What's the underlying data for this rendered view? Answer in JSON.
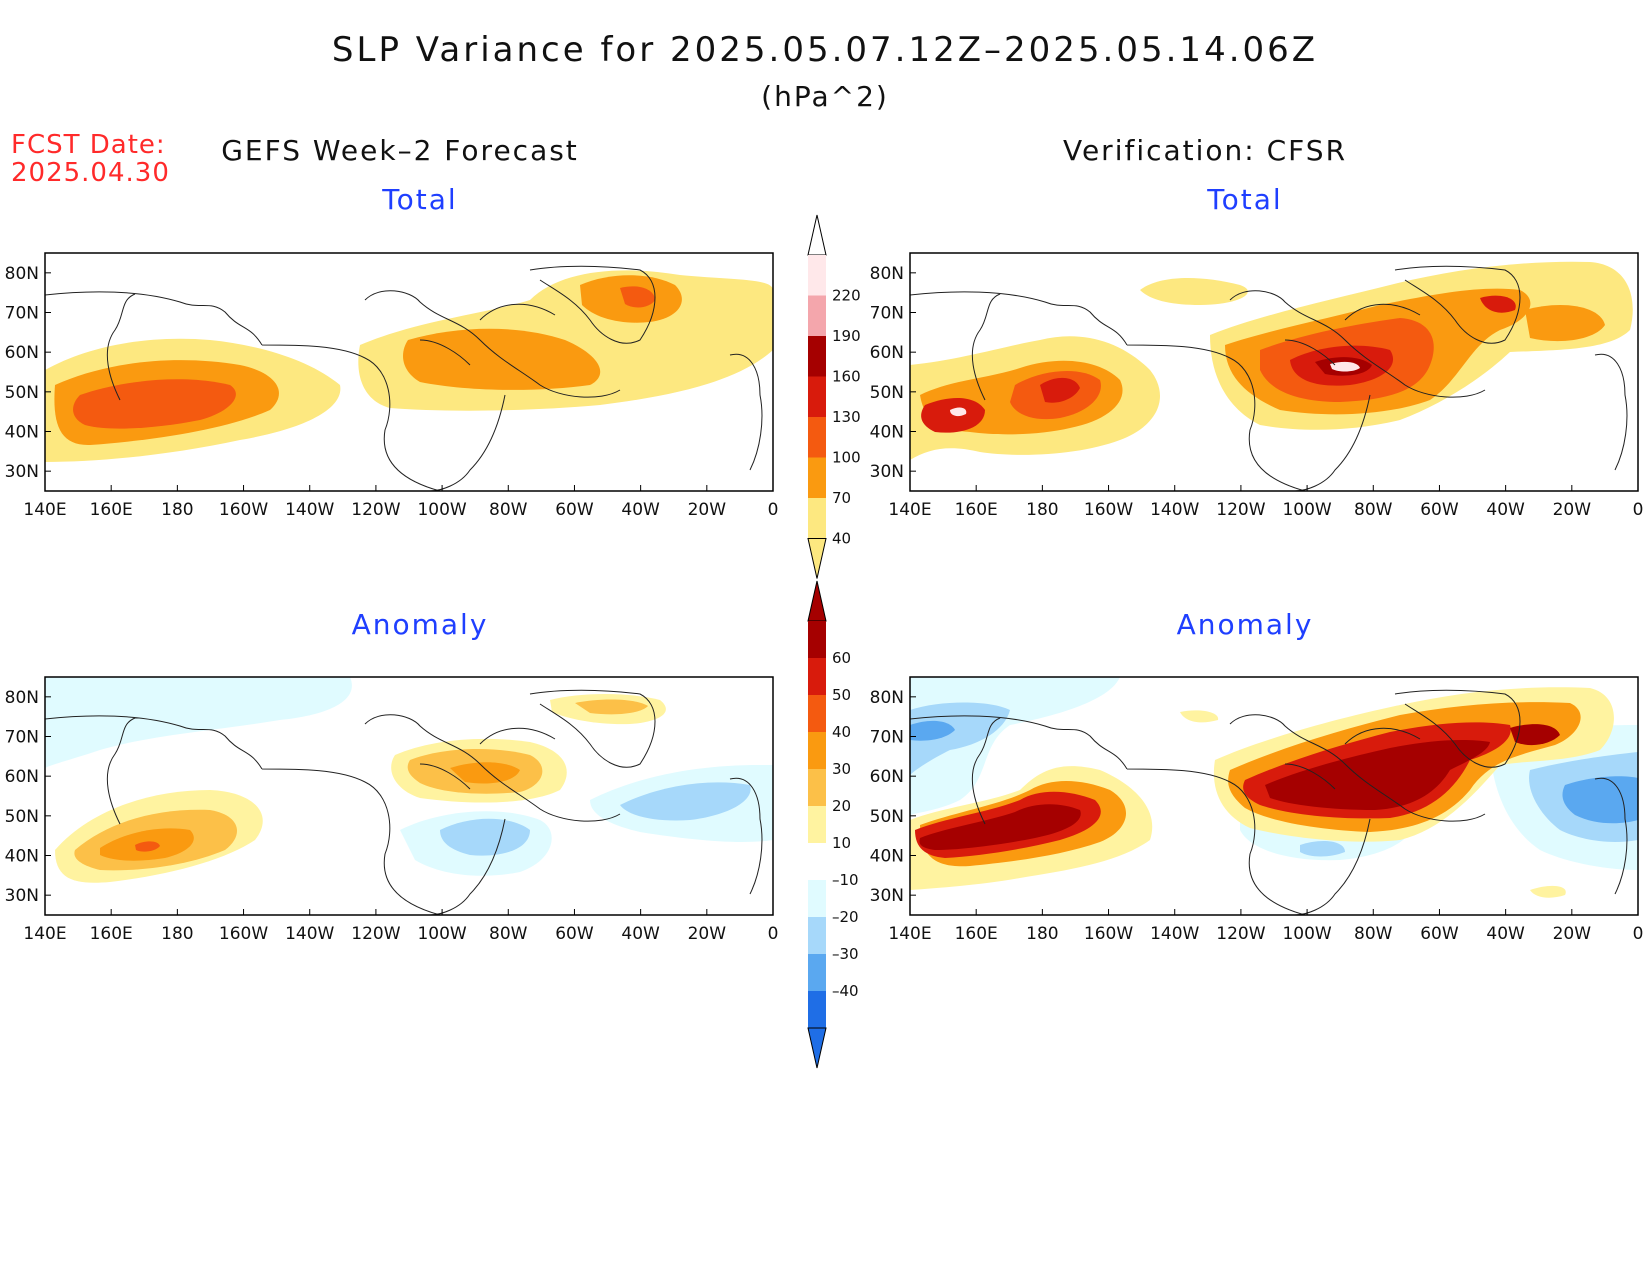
{
  "title": "SLP Variance for 2025.05.07.12Z–2025.05.14.06Z",
  "units": "(hPa^2)",
  "fcst_label": "FCST Date:",
  "fcst_date": "2025.04.30",
  "left_column_title": "GEFS Week–2 Forecast",
  "right_column_title": "Verification: CFSR",
  "panels": [
    {
      "id": "gefs-total",
      "title": "Total",
      "field": "total"
    },
    {
      "id": "cfsr-total",
      "title": "Total",
      "field": "total"
    },
    {
      "id": "gefs-anomaly",
      "title": "Anomaly",
      "field": "anomaly"
    },
    {
      "id": "cfsr-anomaly",
      "title": "Anomaly",
      "field": "anomaly"
    }
  ],
  "lon_labels": [
    "140E",
    "160E",
    "180",
    "160W",
    "140W",
    "120W",
    "100W",
    "80W",
    "60W",
    "40W",
    "20W",
    "0"
  ],
  "lat_labels": [
    "80N",
    "70N",
    "60N",
    "50N",
    "40N",
    "30N"
  ],
  "total_colorbar": {
    "labels": [
      "220",
      "190",
      "160",
      "130",
      "100",
      "70",
      "40"
    ],
    "colors": [
      "#ffe8ea",
      "#f4a6ac",
      "#a50000",
      "#d81b0c",
      "#f45a10",
      "#fa9a10",
      "#fde880"
    ]
  },
  "anomaly_colorbar": {
    "labels": [
      "60",
      "50",
      "40",
      "30",
      "20",
      "10",
      "–10",
      "–20",
      "–30",
      "–40"
    ],
    "colors": [
      "#a50000",
      "#d81b0c",
      "#f45a10",
      "#fa9a10",
      "#fcc048",
      "#fff3a0",
      "#ffffff",
      "#e0fbff",
      "#a6d8fa",
      "#5aa8f0",
      "#1f6ee6"
    ]
  }
}
